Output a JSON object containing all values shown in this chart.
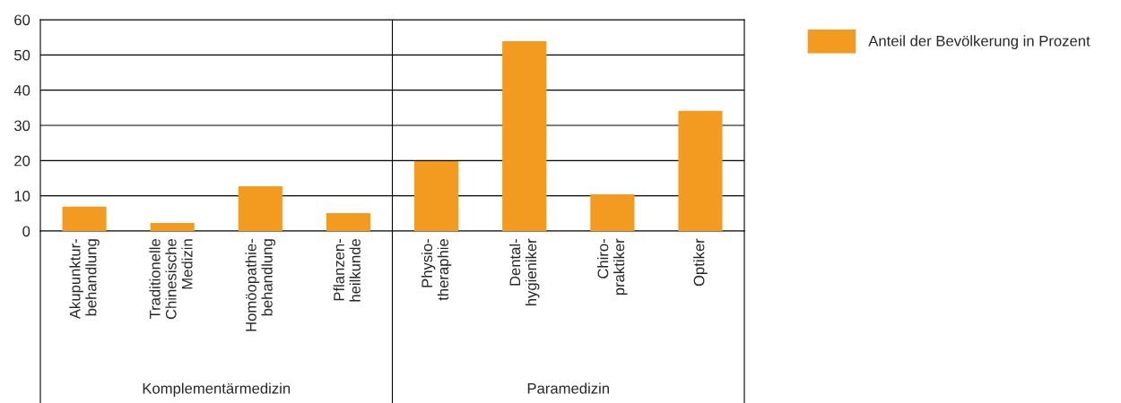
{
  "chart_data": {
    "type": "bar",
    "categories": [
      "Akupunktur-\nbehandlung",
      "Traditionelle\nChinesische\nMedizin",
      "Homöopathie-\nbehandlung",
      "Pflanzen-\nheilkunde",
      "Physio-\ntheraphie",
      "Dental-\nhygieniker",
      "Chiro-\npraktiker",
      "Optiker"
    ],
    "series": [
      {
        "name": "Anteil der Bevölkerung in Prozent",
        "color": "#f39a21",
        "values": [
          6.9,
          2.3,
          12.7,
          5.1,
          19.8,
          53.9,
          10.4,
          34.1
        ]
      }
    ],
    "ylim": [
      0,
      60
    ],
    "yticks": [
      0,
      10,
      20,
      30,
      40,
      50,
      60
    ],
    "grid": "y",
    "legend": "top right",
    "annotations": [
      "Komplementärmedizin",
      "Paramedizin"
    ]
  }
}
